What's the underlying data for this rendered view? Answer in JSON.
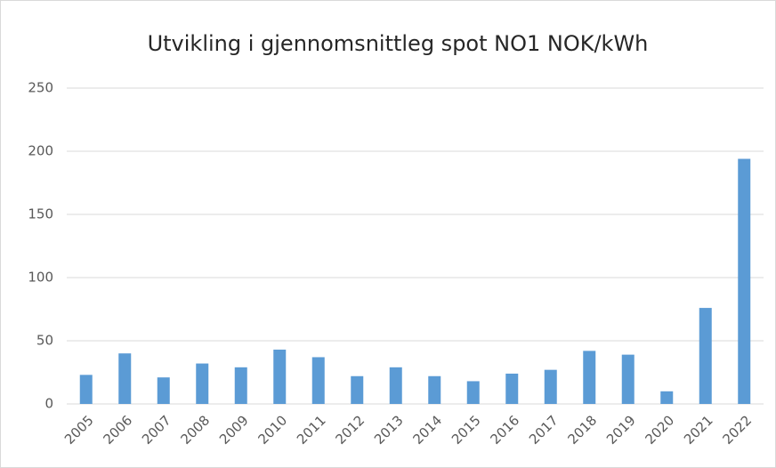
{
  "chart_data": {
    "type": "bar",
    "title": "Utvikling i gjennomsnittleg spot NO1 NOK/kWh",
    "categories": [
      "2005",
      "2006",
      "2007",
      "2008",
      "2009",
      "2010",
      "2011",
      "2012",
      "2013",
      "2014",
      "2015",
      "2016",
      "2017",
      "2018",
      "2019",
      "2020",
      "2021",
      "2022"
    ],
    "values": [
      23,
      40,
      21,
      32,
      29,
      43,
      37,
      22,
      29,
      22,
      18,
      24,
      27,
      42,
      39,
      10,
      76,
      194
    ],
    "color": "#5b9bd5",
    "ylim": [
      0,
      250
    ],
    "yticks": [
      0,
      50,
      100,
      150,
      200,
      250
    ],
    "grid": true
  }
}
